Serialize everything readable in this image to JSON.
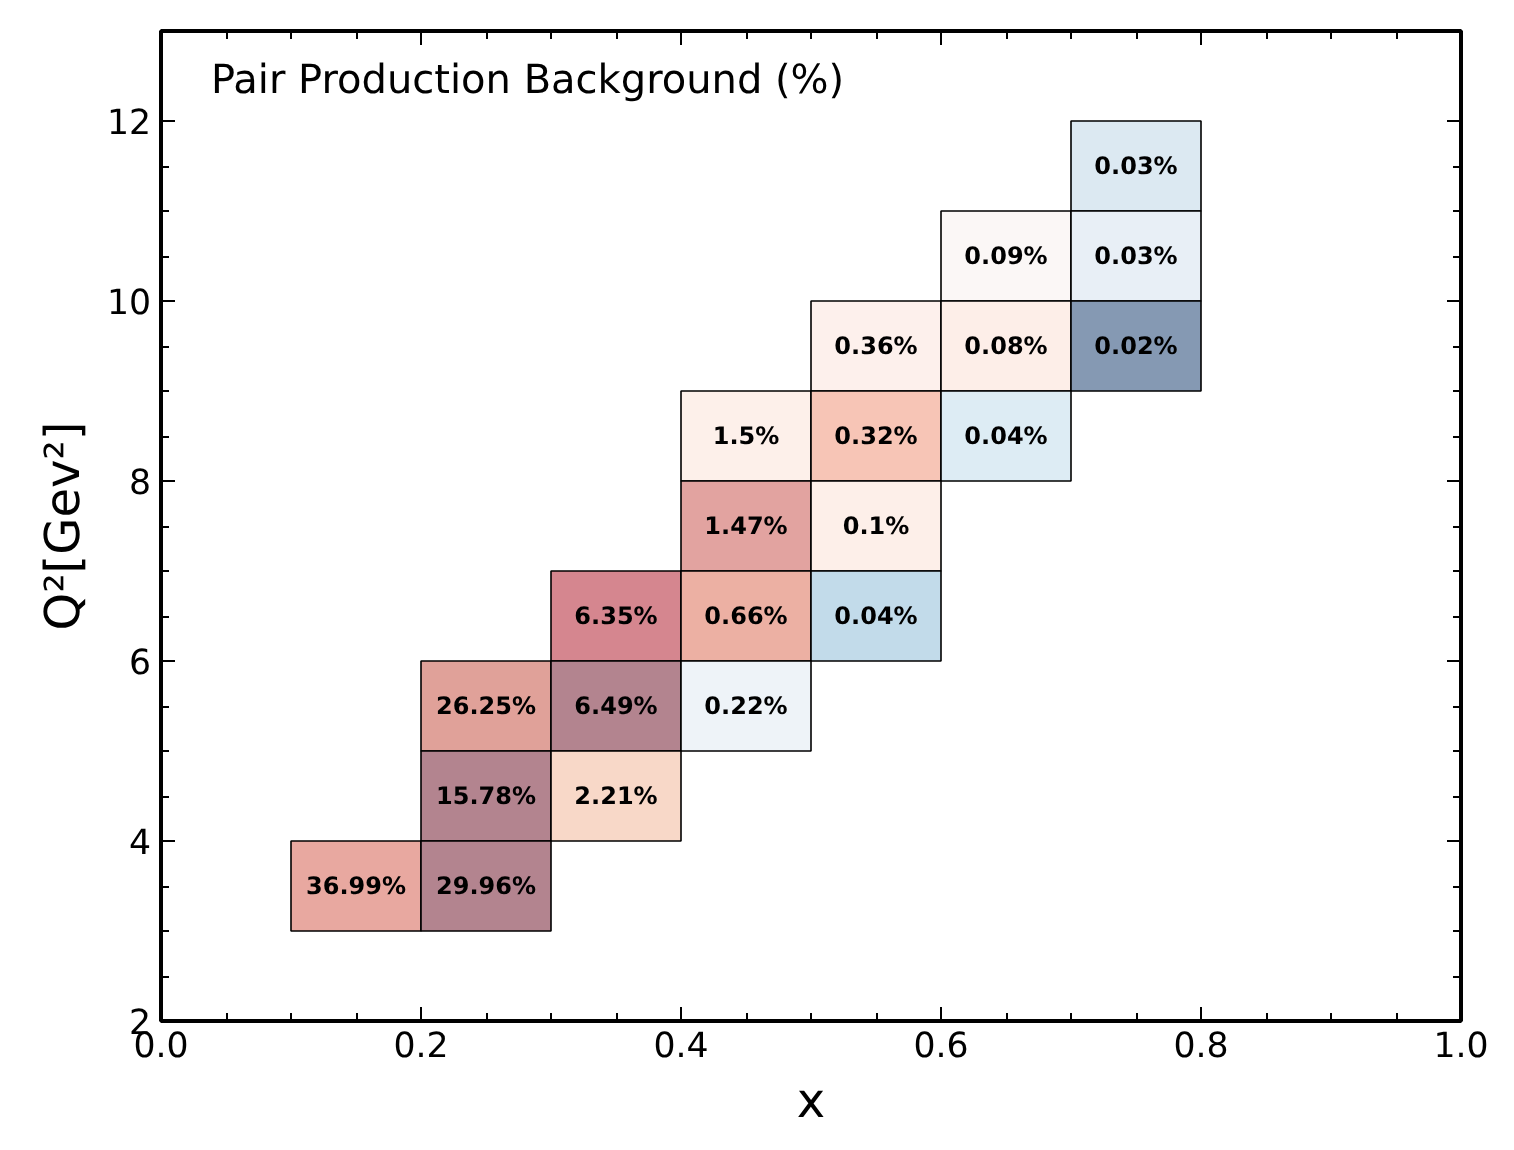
{
  "chart_data": {
    "type": "heatmap",
    "title": "Pair Production Background (%)",
    "xlabel": "x",
    "ylabel": "Q²[Gev²]",
    "x": [
      0.15,
      0.25,
      0.35,
      0.45,
      0.55,
      0.65,
      0.75
    ],
    "y": [
      11.5,
      10.5,
      9.5,
      8.5,
      7.5,
      6.5,
      5.5,
      4.5,
      3.5
    ],
    "cells": [
      [
        null,
        null,
        null,
        null,
        null,
        null,
        0.03
      ],
      [
        null,
        null,
        null,
        null,
        null,
        0.09,
        0.03
      ],
      [
        null,
        null,
        null,
        null,
        0.36,
        0.08,
        0.02
      ],
      [
        null,
        null,
        null,
        1.5,
        0.32,
        0.04,
        null
      ],
      [
        null,
        null,
        null,
        1.47,
        0.1,
        null,
        null
      ],
      [
        null,
        null,
        6.35,
        0.66,
        0.04,
        null,
        null
      ],
      [
        null,
        26.25,
        6.49,
        0.22,
        null,
        null,
        null
      ],
      [
        null,
        15.78,
        2.21,
        null,
        null,
        null,
        null
      ],
      [
        36.99,
        29.96,
        null,
        null,
        null,
        null,
        null
      ]
    ],
    "cell_labels": [
      [
        null,
        null,
        null,
        null,
        null,
        null,
        "0.03%"
      ],
      [
        null,
        null,
        null,
        null,
        null,
        "0.09%",
        "0.03%"
      ],
      [
        null,
        null,
        null,
        null,
        "0.36%",
        "0.08%",
        "0.02%"
      ],
      [
        null,
        null,
        null,
        "1.5%",
        "0.32%",
        "0.04%",
        null
      ],
      [
        null,
        null,
        null,
        "1.47%",
        "0.1%",
        null,
        null
      ],
      [
        null,
        null,
        "6.35%",
        "0.66%",
        "0.04%",
        null,
        null
      ],
      [
        null,
        "26.25%",
        "6.49%",
        "0.22%",
        null,
        null,
        null
      ],
      [
        null,
        "15.78%",
        "2.21%",
        null,
        null,
        null,
        null
      ],
      [
        "36.99%",
        "29.96%",
        null,
        null,
        null,
        null,
        null
      ]
    ],
    "colors": [
      [
        null,
        null,
        null,
        null,
        null,
        null,
        "#dce9f2"
      ],
      [
        null,
        null,
        null,
        null,
        null,
        "#fbf7f6",
        "#e8eff6"
      ],
      [
        null,
        null,
        null,
        null,
        "#fdf0ec",
        "#fdeee8",
        "#8599b3"
      ],
      [
        null,
        null,
        null,
        "#fdf0ea",
        "#f7c5b6",
        "#ddecf4",
        null
      ],
      [
        null,
        null,
        null,
        "#e2a3a0",
        "#fdefe9",
        null,
        null
      ],
      [
        null,
        null,
        "#d5868f",
        "#ecb0a3",
        "#c2dbea",
        null,
        null
      ],
      [
        null,
        "#e0a199",
        "#b3848f",
        "#eef3f8",
        null,
        null,
        null
      ],
      [
        null,
        "#b3848f",
        "#f8d8c8",
        null,
        null,
        null,
        null
      ],
      [
        "#e8a8a0",
        "#b3848f",
        null,
        null,
        null,
        null,
        null
      ]
    ],
    "xlim": [
      0,
      1
    ],
    "ylim": [
      2,
      13
    ],
    "xticks": [
      {
        "value": 0,
        "label": "0.0"
      },
      {
        "value": 0.2,
        "label": "0.2"
      },
      {
        "value": 0.4,
        "label": "0.4"
      },
      {
        "value": 0.6,
        "label": "0.6"
      },
      {
        "value": 0.8,
        "label": "0.8"
      },
      {
        "value": 1,
        "label": "1.0"
      }
    ],
    "yticks": [
      2,
      4,
      6,
      8,
      10,
      12
    ],
    "grid": false
  }
}
